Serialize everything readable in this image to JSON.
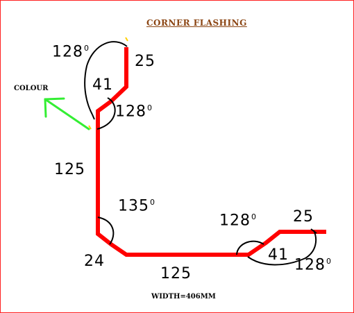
{
  "title": "CORNER  FLASHING",
  "colour_label": "COLOUR",
  "width_label": "WIDTH=406MM",
  "colors": {
    "profile": "#ff0000",
    "arrow": "#33ee33",
    "arc": "#000000",
    "title": "#8b4513",
    "border": "#ff2020"
  },
  "dimensions": {
    "top_fold": "25",
    "top_slope": "41",
    "vertical": "125",
    "bottom_bevel": "24",
    "horizontal": "125",
    "right_slope": "41",
    "right_fold": "25"
  },
  "angles": {
    "top_outer_value": "128",
    "top_inner_value": "128",
    "bottom_left_value": "135",
    "right_inner_value": "128",
    "right_outer_value": "128",
    "unit": "0"
  }
}
